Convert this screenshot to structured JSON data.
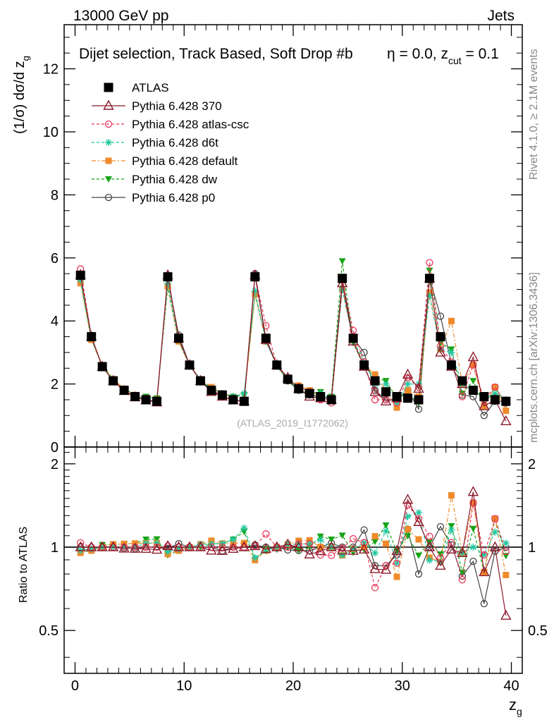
{
  "header": {
    "energy_label": "13000 GeV pp",
    "category_label": "Jets",
    "plot_title": "Dijet selection, Track Based, Soft Drop #b",
    "title_suffix_eta": "η = 0.0, z",
    "title_suffix_sub": "cut",
    "title_suffix_end": " = 0.1"
  },
  "side_labels": {
    "rivet": "Rivet 4.1.0, ≥ 2.1M events",
    "mcplots": "mcplots.cern.ch [arXiv:1306.3436]"
  },
  "watermark": "(ATLAS_2019_I1772062)",
  "colors": {
    "atlas": "#000000",
    "p370": "#8b1a2b",
    "atlascsc": "#e8395a",
    "d6t": "#1fc8a0",
    "default": "#f08a2a",
    "dw": "#16a416",
    "p0": "#444444"
  },
  "chart_data": {
    "type": "scatter",
    "main_panel": {
      "ylabel": "(1/σ) dσ/d z",
      "ylabel_sub": "g",
      "ylim": [
        0,
        13.4
      ],
      "yticks": [
        0,
        2,
        4,
        6,
        8,
        10,
        12
      ],
      "ytick_labels": [
        "0",
        "2",
        "4",
        "6",
        "8",
        "10",
        "12"
      ]
    },
    "ratio_panel": {
      "ylabel": "Ratio to ATLAS",
      "ylim": [
        0.35,
        2.3
      ],
      "yticks": [
        0.5,
        1,
        2
      ],
      "ytick_labels": [
        "0.5",
        "1",
        "2"
      ]
    },
    "xaxis": {
      "xlabel": "z",
      "xlabel_sub": "g",
      "xlim": [
        -1,
        41
      ],
      "xticks": [
        0,
        10,
        20,
        30,
        40
      ],
      "xtick_labels": [
        "0",
        "10",
        "20",
        "30",
        "40"
      ]
    },
    "x": [
      0.5,
      1.5,
      2.5,
      3.5,
      4.5,
      5.5,
      6.5,
      7.5,
      8.5,
      9.5,
      10.5,
      11.5,
      12.5,
      13.5,
      14.5,
      15.5,
      16.5,
      17.5,
      18.5,
      19.5,
      20.5,
      21.5,
      22.5,
      23.5,
      24.5,
      25.5,
      26.5,
      27.5,
      28.5,
      29.5,
      30.5,
      31.5,
      32.5,
      33.5,
      34.5,
      35.5,
      36.5,
      37.5,
      38.5,
      39.5
    ],
    "series": [
      {
        "key": "atlas",
        "name": "ATLAS",
        "marker": "square",
        "line": "none",
        "values": [
          5.45,
          3.5,
          2.55,
          2.1,
          1.8,
          1.6,
          1.5,
          1.45,
          5.4,
          3.45,
          2.6,
          2.1,
          1.8,
          1.65,
          1.5,
          1.45,
          5.4,
          3.45,
          2.6,
          2.15,
          1.85,
          1.7,
          1.6,
          1.5,
          5.35,
          3.45,
          2.6,
          2.1,
          1.75,
          1.6,
          1.55,
          1.5,
          5.35,
          3.5,
          2.6,
          2.1,
          1.8,
          1.6,
          1.5,
          1.45
        ]
      },
      {
        "key": "p370",
        "name": "Pythia 6.428 370",
        "marker": "triangle-open",
        "line": "solid",
        "values": [
          5.45,
          3.5,
          2.55,
          2.1,
          1.78,
          1.58,
          1.48,
          1.42,
          5.45,
          3.45,
          2.6,
          2.1,
          1.75,
          1.6,
          1.48,
          1.45,
          5.45,
          3.4,
          2.6,
          2.2,
          1.85,
          1.6,
          1.55,
          1.5,
          5.2,
          3.35,
          2.55,
          1.75,
          1.45,
          1.55,
          2.3,
          1.85,
          5.35,
          3.0,
          2.55,
          2.0,
          2.85,
          1.3,
          1.5,
          0.82
        ]
      },
      {
        "key": "atlascsc",
        "name": "Pythia 6.428 atlas-csc",
        "marker": "circle-open",
        "line": "dashed",
        "values": [
          5.65,
          3.5,
          2.55,
          2.1,
          1.8,
          1.6,
          1.5,
          1.45,
          5.45,
          3.45,
          2.6,
          2.1,
          1.8,
          1.65,
          1.5,
          1.45,
          5.45,
          3.85,
          2.6,
          2.15,
          1.9,
          1.75,
          1.5,
          1.4,
          5.3,
          3.7,
          2.7,
          1.5,
          1.5,
          1.4,
          2.2,
          1.9,
          5.85,
          3.2,
          2.7,
          1.6,
          2.6,
          1.5,
          1.9,
          1.4
        ]
      },
      {
        "key": "d6t",
        "name": "Pythia 6.428 d6t",
        "marker": "star",
        "line": "dashed",
        "values": [
          5.3,
          3.45,
          2.55,
          2.1,
          1.8,
          1.6,
          1.55,
          1.5,
          5.2,
          3.4,
          2.6,
          2.15,
          1.85,
          1.7,
          1.6,
          1.7,
          4.95,
          3.35,
          2.6,
          2.2,
          1.9,
          1.75,
          1.7,
          1.5,
          5.0,
          3.4,
          2.7,
          2.0,
          2.0,
          1.4,
          2.0,
          2.0,
          4.8,
          3.1,
          3.0,
          2.0,
          1.8,
          1.5,
          1.7,
          1.5
        ]
      },
      {
        "key": "default",
        "name": "Pythia 6.428 default",
        "marker": "square-filled",
        "line": "dashdot",
        "values": [
          5.2,
          3.4,
          2.55,
          2.15,
          1.85,
          1.65,
          1.55,
          1.5,
          5.1,
          3.35,
          2.6,
          2.15,
          1.9,
          1.7,
          1.55,
          1.5,
          4.85,
          3.35,
          2.6,
          2.2,
          1.95,
          1.8,
          1.6,
          1.5,
          5.0,
          3.4,
          2.6,
          2.3,
          1.8,
          1.25,
          1.8,
          1.6,
          4.9,
          3.1,
          4.0,
          2.0,
          2.6,
          1.3,
          1.9,
          1.15
        ]
      },
      {
        "key": "dw",
        "name": "Pythia 6.428 dw",
        "marker": "triangle-down-filled",
        "line": "dashed",
        "values": [
          5.25,
          3.4,
          2.6,
          2.15,
          1.85,
          1.65,
          1.6,
          1.55,
          5.05,
          3.35,
          2.6,
          2.1,
          1.85,
          1.7,
          1.6,
          1.65,
          4.85,
          3.4,
          2.55,
          2.15,
          1.8,
          1.7,
          1.75,
          1.6,
          5.9,
          3.3,
          2.55,
          2.2,
          2.1,
          1.55,
          1.7,
          1.4,
          5.6,
          3.3,
          3.1,
          1.7,
          2.1,
          1.3,
          1.9,
          1.35
        ]
      },
      {
        "key": "p0",
        "name": "Pythia 6.428 p0",
        "marker": "circle-open",
        "line": "solid",
        "values": [
          5.45,
          3.5,
          2.55,
          2.1,
          1.78,
          1.58,
          1.5,
          1.45,
          5.35,
          3.55,
          2.6,
          2.1,
          1.8,
          1.6,
          1.5,
          1.45,
          5.5,
          3.45,
          2.6,
          2.1,
          1.8,
          1.65,
          1.6,
          1.55,
          5.35,
          3.45,
          3.0,
          1.8,
          1.5,
          1.5,
          1.8,
          1.2,
          5.35,
          4.15,
          2.65,
          1.65,
          1.6,
          1.0,
          1.45,
          1.45
        ]
      }
    ]
  }
}
